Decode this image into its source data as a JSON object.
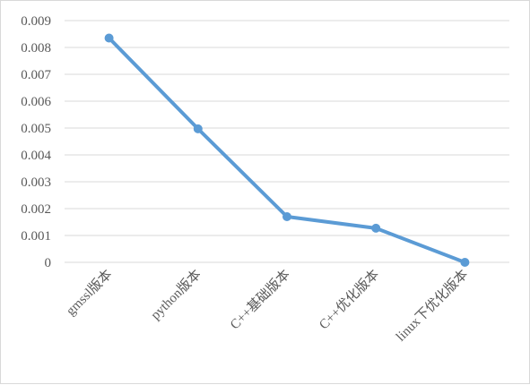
{
  "chart_data": {
    "type": "line",
    "title": "",
    "xlabel": "",
    "ylabel": "",
    "categories": [
      "gmssl版本",
      "python版本",
      "C++基础版本",
      "C++优化版本",
      "linux下优化版本"
    ],
    "series": [
      {
        "values": [
          0.00835,
          0.00497,
          0.0017,
          0.00127,
          0.0
        ]
      }
    ],
    "ylim": [
      0,
      0.009
    ],
    "yticks": [
      "0",
      "0.001",
      "0.002",
      "0.003",
      "0.004",
      "0.005",
      "0.006",
      "0.007",
      "0.008",
      "0.009"
    ],
    "grid": "horizontal",
    "legend": "none",
    "line_color": "#5b9bd5"
  }
}
